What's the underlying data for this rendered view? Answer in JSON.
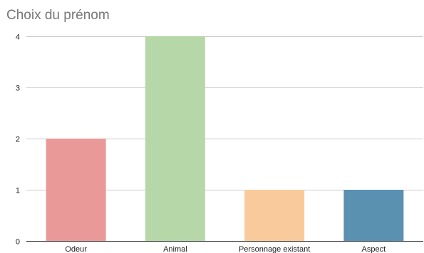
{
  "chart_data": {
    "type": "bar",
    "title": "Choix du prénom",
    "xlabel": "",
    "ylabel": "",
    "categories": [
      "Odeur",
      "Animal",
      "Personnage existant",
      "Aspect"
    ],
    "values": [
      2,
      4,
      1,
      1
    ],
    "bar_colors": [
      "#ea9999",
      "#b6d7a8",
      "#f9cb9c",
      "#5b91b0"
    ],
    "ylim": [
      0,
      4
    ],
    "yticks": [
      "0",
      "1",
      "2",
      "3",
      "4"
    ],
    "grid": true,
    "legend": "none"
  }
}
